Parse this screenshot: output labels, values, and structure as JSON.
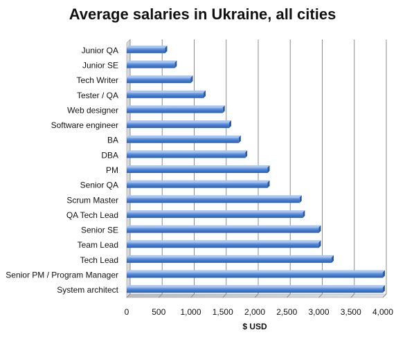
{
  "chart_data": {
    "type": "bar",
    "orientation": "horizontal",
    "title": "Average salaries in Ukraine, all cities",
    "xlabel": "$ USD",
    "ylabel": "",
    "xlim": [
      0,
      4000
    ],
    "x_ticks": [
      0,
      500,
      1000,
      1500,
      2000,
      2500,
      3000,
      3500,
      4000
    ],
    "x_tick_labels": [
      "0",
      "500",
      "1,000",
      "1,500",
      "2,000",
      "2,500",
      "3,000",
      "3,500",
      "4,000"
    ],
    "grid": true,
    "legend": "none",
    "bar_color": "#4a7fd0",
    "categories": [
      "Junior QA",
      "Junior SE",
      "Tech Writer",
      "Tester / QA",
      "Web designer",
      "Software engineer",
      "BA",
      "DBA",
      "PM",
      "Senior QA",
      "Scrum Master",
      "QA Tech Lead",
      "Senior SE",
      "Team Lead",
      "Tech Lead",
      "Senior PM / Program Manager",
      "System architect"
    ],
    "values": [
      600,
      750,
      1000,
      1200,
      1500,
      1600,
      1750,
      1850,
      2200,
      2200,
      2700,
      2750,
      3000,
      3000,
      3200,
      4000,
      4000
    ]
  }
}
